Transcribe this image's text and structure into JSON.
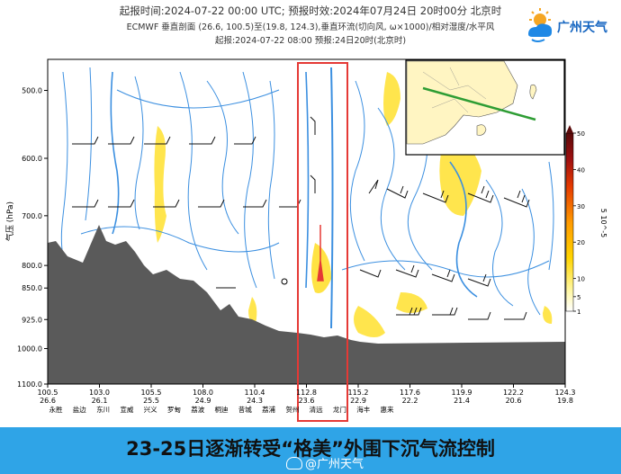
{
  "header": {
    "line1": "起报时间:2024-07-22 00:00 UTC; 预报时效:2024年07月24日 20时00分 北京时",
    "line2": "ECMWF  垂直剖面 (26.6, 100.5)至(19.8, 124.3),垂直环流(切向风, ω×1000)/相对湿度/水平风",
    "line3": "起报:2024-07-22 08:00  预报:24日20时(北京时)"
  },
  "logo": {
    "text": "广州天气",
    "icon": "sun-cloud-icon"
  },
  "banner": {
    "text": "23-25日逐渐转受“格美”外围下沉气流控制"
  },
  "watermark": {
    "text": "@广州天气",
    "icon": "weibo-icon"
  },
  "colors": {
    "terrain": "#5a5a5a",
    "streamline": "#3b8fe0",
    "highlight": "#e53935",
    "banner": "#2fa4e7"
  },
  "chart_data": {
    "type": "vertical-cross-section",
    "title": "",
    "ylabel": "气压 (hPa)",
    "yaxis": {
      "scale": "log",
      "range": [
        1100,
        460
      ],
      "ticks": [
        500,
        600,
        700,
        800,
        850,
        925,
        1000,
        1100
      ]
    },
    "xaxis": {
      "ticks": [
        {
          "lon": "100.5",
          "lat": "26.6"
        },
        {
          "lon": "103.0",
          "lat": "26.1"
        },
        {
          "lon": "105.5",
          "lat": "25.5"
        },
        {
          "lon": "108.0",
          "lat": "24.9"
        },
        {
          "lon": "110.4",
          "lat": "24.3"
        },
        {
          "lon": "112.8",
          "lat": "23.6"
        },
        {
          "lon": "115.2",
          "lat": "22.9"
        },
        {
          "lon": "117.6",
          "lat": "22.2"
        },
        {
          "lon": "119.9",
          "lat": "21.4"
        },
        {
          "lon": "122.2",
          "lat": "20.6"
        },
        {
          "lon": "124.3",
          "lat": "19.8"
        }
      ],
      "places": [
        "永胜",
        "盐边",
        "东川",
        "宣威",
        "兴义",
        "罗甸",
        "荔波",
        "桐迪",
        "昔城",
        "荔浦",
        "贺州",
        "清远",
        "龙门",
        "海丰",
        "惠来"
      ]
    },
    "colorbar": {
      "label": "5 10^-5",
      "ticks": [
        1,
        5,
        10,
        20,
        30,
        40,
        50
      ]
    },
    "highlight_column": [
      "112.8",
      "23.6"
    ]
  }
}
